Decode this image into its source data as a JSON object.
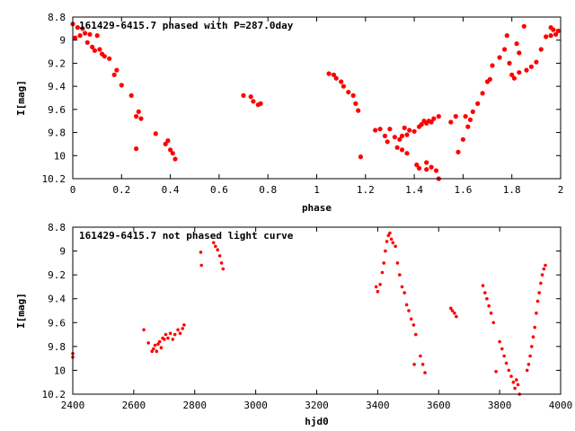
{
  "chart_data": [
    {
      "type": "scatter",
      "title": "161429-6415.7 phased with P=287.0day",
      "xlabel": "phase",
      "ylabel": "I[mag]",
      "xlim": [
        0,
        2
      ],
      "ylim": [
        10.2,
        8.8
      ],
      "y_inverted": true,
      "x_ticks": [
        "0",
        "0.2",
        "0.4",
        "0.6",
        "0.8",
        "1",
        "1.2",
        "1.4",
        "1.6",
        "1.8",
        "2"
      ],
      "y_ticks": [
        "8.8",
        "9",
        "9.2",
        "9.4",
        "9.6",
        "9.8",
        "10",
        "10.2"
      ],
      "grid": false,
      "marker_color": "#ff0000",
      "series": [
        {
          "points": [
            [
              0.0,
              8.86
            ],
            [
              0.01,
              8.98
            ],
            [
              0.02,
              8.89
            ],
            [
              0.03,
              8.96
            ],
            [
              0.04,
              8.9
            ],
            [
              0.05,
              8.94
            ],
            [
              0.06,
              9.02
            ],
            [
              0.07,
              8.95
            ],
            [
              0.08,
              9.06
            ],
            [
              0.09,
              9.09
            ],
            [
              0.1,
              8.96
            ],
            [
              0.11,
              9.08
            ],
            [
              0.12,
              9.12
            ],
            [
              0.13,
              9.14
            ],
            [
              0.15,
              9.16
            ],
            [
              0.17,
              9.3
            ],
            [
              0.18,
              9.26
            ],
            [
              0.2,
              9.39
            ],
            [
              0.24,
              9.48
            ],
            [
              0.26,
              9.66
            ],
            [
              0.27,
              9.62
            ],
            [
              0.28,
              9.68
            ],
            [
              0.26,
              9.94
            ],
            [
              0.34,
              9.81
            ],
            [
              0.38,
              9.9
            ],
            [
              0.39,
              9.87
            ],
            [
              0.4,
              9.95
            ],
            [
              0.41,
              9.98
            ],
            [
              0.42,
              10.03
            ],
            [
              0.7,
              9.48
            ],
            [
              0.73,
              9.49
            ],
            [
              0.74,
              9.53
            ],
            [
              0.76,
              9.56
            ],
            [
              0.77,
              9.55
            ],
            [
              1.05,
              9.29
            ],
            [
              1.07,
              9.3
            ],
            [
              1.08,
              9.33
            ],
            [
              1.1,
              9.36
            ],
            [
              1.11,
              9.4
            ],
            [
              1.13,
              9.45
            ],
            [
              1.15,
              9.48
            ],
            [
              1.16,
              9.55
            ],
            [
              1.17,
              9.61
            ],
            [
              1.18,
              10.01
            ],
            [
              1.24,
              9.78
            ],
            [
              1.26,
              9.77
            ],
            [
              1.28,
              9.83
            ],
            [
              1.29,
              9.88
            ],
            [
              1.3,
              9.77
            ],
            [
              1.32,
              9.84
            ],
            [
              1.33,
              9.93
            ],
            [
              1.34,
              9.86
            ],
            [
              1.35,
              9.83
            ],
            [
              1.36,
              9.76
            ],
            [
              1.37,
              9.82
            ],
            [
              1.38,
              9.78
            ],
            [
              1.4,
              9.79
            ],
            [
              1.42,
              9.75
            ],
            [
              1.43,
              9.73
            ],
            [
              1.44,
              9.7
            ],
            [
              1.45,
              9.72
            ],
            [
              1.46,
              9.7
            ],
            [
              1.47,
              9.71
            ],
            [
              1.48,
              9.68
            ],
            [
              1.5,
              9.66
            ],
            [
              1.35,
              9.95
            ],
            [
              1.37,
              9.98
            ],
            [
              1.41,
              10.08
            ],
            [
              1.42,
              10.11
            ],
            [
              1.45,
              10.06
            ],
            [
              1.47,
              10.1
            ],
            [
              1.49,
              10.13
            ],
            [
              1.5,
              10.2
            ],
            [
              1.45,
              10.12
            ],
            [
              1.55,
              9.71
            ],
            [
              1.57,
              9.66
            ],
            [
              1.58,
              9.97
            ],
            [
              1.6,
              9.86
            ],
            [
              1.62,
              9.75
            ],
            [
              1.61,
              9.66
            ],
            [
              1.63,
              9.69
            ],
            [
              1.64,
              9.62
            ],
            [
              1.66,
              9.55
            ],
            [
              1.68,
              9.46
            ],
            [
              1.7,
              9.36
            ],
            [
              1.71,
              9.34
            ],
            [
              1.72,
              9.22
            ],
            [
              1.75,
              9.15
            ],
            [
              1.77,
              9.08
            ],
            [
              1.78,
              8.96
            ],
            [
              1.79,
              9.2
            ],
            [
              1.8,
              9.3
            ],
            [
              1.81,
              9.33
            ],
            [
              1.83,
              9.28
            ],
            [
              1.82,
              9.03
            ],
            [
              1.83,
              9.11
            ],
            [
              1.85,
              8.88
            ],
            [
              1.86,
              9.26
            ],
            [
              1.88,
              9.23
            ],
            [
              1.9,
              9.19
            ],
            [
              1.92,
              9.08
            ],
            [
              1.94,
              8.97
            ],
            [
              1.96,
              8.96
            ],
            [
              1.97,
              8.91
            ],
            [
              1.98,
              8.95
            ],
            [
              1.99,
              8.92
            ],
            [
              1.96,
              8.89
            ]
          ]
        }
      ]
    },
    {
      "type": "scatter",
      "title": "161429-6415.7 not phased light curve",
      "xlabel": "hjd0",
      "ylabel": "I[mag]",
      "xlim": [
        2400,
        4000
      ],
      "ylim": [
        10.2,
        8.8
      ],
      "y_inverted": true,
      "x_ticks": [
        "2400",
        "2600",
        "2800",
        "3000",
        "3200",
        "3400",
        "3600",
        "3800",
        "4000"
      ],
      "y_ticks": [
        "8.8",
        "9",
        "9.2",
        "9.4",
        "9.6",
        "9.8",
        "10",
        "10.2"
      ],
      "grid": false,
      "marker_color": "#ff0000",
      "series": [
        {
          "points": [
            [
              2400,
              9.86
            ],
            [
              2400,
              9.89
            ],
            [
              2633,
              9.66
            ],
            [
              2648,
              9.77
            ],
            [
              2660,
              9.84
            ],
            [
              2665,
              9.82
            ],
            [
              2670,
              9.79
            ],
            [
              2675,
              9.84
            ],
            [
              2680,
              9.78
            ],
            [
              2685,
              9.76
            ],
            [
              2690,
              9.81
            ],
            [
              2695,
              9.73
            ],
            [
              2700,
              9.74
            ],
            [
              2705,
              9.7
            ],
            [
              2712,
              9.73
            ],
            [
              2720,
              9.69
            ],
            [
              2728,
              9.74
            ],
            [
              2735,
              9.7
            ],
            [
              2745,
              9.66
            ],
            [
              2752,
              9.69
            ],
            [
              2760,
              9.65
            ],
            [
              2765,
              9.62
            ],
            [
              2820,
              9.01
            ],
            [
              2822,
              9.12
            ],
            [
              2862,
              8.93
            ],
            [
              2868,
              8.96
            ],
            [
              2875,
              8.99
            ],
            [
              2882,
              9.04
            ],
            [
              2888,
              9.1
            ],
            [
              2893,
              9.15
            ],
            [
              3395,
              9.3
            ],
            [
              3400,
              9.34
            ],
            [
              3408,
              9.28
            ],
            [
              3415,
              9.18
            ],
            [
              3420,
              9.1
            ],
            [
              3425,
              9.0
            ],
            [
              3430,
              8.92
            ],
            [
              3435,
              8.87
            ],
            [
              3440,
              8.85
            ],
            [
              3445,
              8.9
            ],
            [
              3450,
              8.93
            ],
            [
              3458,
              8.96
            ],
            [
              3465,
              9.1
            ],
            [
              3472,
              9.2
            ],
            [
              3480,
              9.3
            ],
            [
              3488,
              9.35
            ],
            [
              3495,
              9.45
            ],
            [
              3502,
              9.5
            ],
            [
              3510,
              9.57
            ],
            [
              3518,
              9.62
            ],
            [
              3525,
              9.7
            ],
            [
              3520,
              9.95
            ],
            [
              3540,
              9.88
            ],
            [
              3548,
              9.95
            ],
            [
              3555,
              10.02
            ],
            [
              3640,
              9.48
            ],
            [
              3645,
              9.5
            ],
            [
              3652,
              9.52
            ],
            [
              3658,
              9.55
            ],
            [
              3745,
              9.29
            ],
            [
              3752,
              9.35
            ],
            [
              3758,
              9.4
            ],
            [
              3765,
              9.46
            ],
            [
              3772,
              9.52
            ],
            [
              3780,
              9.6
            ],
            [
              3788,
              10.01
            ],
            [
              3800,
              9.76
            ],
            [
              3808,
              9.82
            ],
            [
              3815,
              9.88
            ],
            [
              3822,
              9.94
            ],
            [
              3830,
              10.0
            ],
            [
              3838,
              10.05
            ],
            [
              3845,
              10.1
            ],
            [
              3850,
              10.15
            ],
            [
              3855,
              10.08
            ],
            [
              3860,
              10.12
            ],
            [
              3865,
              10.2
            ],
            [
              3890,
              10.0
            ],
            [
              3895,
              9.95
            ],
            [
              3900,
              9.88
            ],
            [
              3905,
              9.8
            ],
            [
              3910,
              9.72
            ],
            [
              3915,
              9.64
            ],
            [
              3920,
              9.52
            ],
            [
              3925,
              9.42
            ],
            [
              3930,
              9.35
            ],
            [
              3935,
              9.27
            ],
            [
              3940,
              9.2
            ],
            [
              3945,
              9.15
            ],
            [
              3950,
              9.12
            ]
          ]
        }
      ]
    }
  ]
}
